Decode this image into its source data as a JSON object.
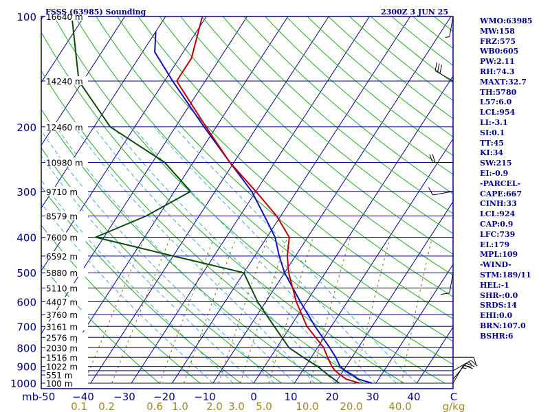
{
  "header": {
    "station": "FSSS (63985) Sounding",
    "time": "2300Z  3 JUN 25"
  },
  "colors": {
    "frame": "#00008b",
    "isobar": "#00008b",
    "isotherm": "#00008b",
    "dry_adiabat": "#22aa22",
    "moist_adiabat": "#44aadd",
    "mixing_ratio": "#8b6914",
    "temperature": "#c00000",
    "dewpoint": "#0a4a0a",
    "parcel": "#1010c0",
    "text_left": "#00008b",
    "text_bottom_temp": "#00008b",
    "text_bottom_mix": "#a08a2a"
  },
  "chart_data": {
    "type": "skew-t",
    "pressure_range": [
      1000,
      100
    ],
    "temperature_range": [
      -50,
      50
    ],
    "pressure_labels": [
      {
        "p": 100,
        "label": "100"
      },
      {
        "p": 200,
        "label": "200"
      },
      {
        "p": 300,
        "label": "300"
      },
      {
        "p": 400,
        "label": "400"
      },
      {
        "p": 500,
        "label": "500"
      },
      {
        "p": 600,
        "label": "600"
      },
      {
        "p": 700,
        "label": "700"
      },
      {
        "p": 800,
        "label": "800"
      },
      {
        "p": 900,
        "label": "900"
      },
      {
        "p": 1000,
        "label": "1000"
      }
    ],
    "isobars": [
      100,
      150,
      200,
      250,
      300,
      350,
      400,
      450,
      500,
      550,
      600,
      650,
      700,
      750,
      800,
      850,
      900,
      925,
      950,
      1000
    ],
    "heights": [
      {
        "p": 100,
        "label": "16640 m"
      },
      {
        "p": 150,
        "label": "14240 m"
      },
      {
        "p": 200,
        "label": "12460 m"
      },
      {
        "p": 250,
        "label": "10980 m"
      },
      {
        "p": 300,
        "label": "9710 m"
      },
      {
        "p": 350,
        "label": "8579 m"
      },
      {
        "p": 400,
        "label": "7600 m"
      },
      {
        "p": 450,
        "label": "6592 m"
      },
      {
        "p": 500,
        "label": "5880 m"
      },
      {
        "p": 550,
        "label": "5110 m"
      },
      {
        "p": 600,
        "label": "4407 m"
      },
      {
        "p": 650,
        "label": "3760 m"
      },
      {
        "p": 700,
        "label": "3161 m"
      },
      {
        "p": 750,
        "label": "2576 m"
      },
      {
        "p": 800,
        "label": "2030 m"
      },
      {
        "p": 850,
        "label": "1516 m"
      },
      {
        "p": 900,
        "label": "1022 m"
      },
      {
        "p": 950,
        "label": "551 m"
      },
      {
        "p": 1000,
        "label": "100 m"
      }
    ],
    "x_axis_unit_left": "mb",
    "temperature_labels": [
      "-50",
      "−40",
      "−30",
      "−20",
      "−10",
      "0",
      "10",
      "20",
      "30",
      "40",
      "C"
    ],
    "mixing_ratio_labels": [
      "0.1",
      "0.2",
      "0.6",
      "1.0",
      "2.0",
      "3.0",
      "5.0",
      "10.0",
      "20.0",
      "40.0",
      "g/kg"
    ],
    "temperature": [
      {
        "p": 1000,
        "t": 26
      },
      {
        "p": 975,
        "t": 22
      },
      {
        "p": 950,
        "t": 20
      },
      {
        "p": 925,
        "t": 18
      },
      {
        "p": 900,
        "t": 16.5
      },
      {
        "p": 850,
        "t": 14
      },
      {
        "p": 800,
        "t": 11.5
      },
      {
        "p": 700,
        "t": 4
      },
      {
        "p": 600,
        "t": -2.5
      },
      {
        "p": 500,
        "t": -9
      },
      {
        "p": 450,
        "t": -12
      },
      {
        "p": 400,
        "t": -14.5
      },
      {
        "p": 350,
        "t": -21
      },
      {
        "p": 300,
        "t": -30
      },
      {
        "p": 250,
        "t": -41
      },
      {
        "p": 200,
        "t": -52.5
      },
      {
        "p": 150,
        "t": -67
      },
      {
        "p": 130,
        "t": -67
      },
      {
        "p": 100,
        "t": -71
      }
    ],
    "dewpoint": [
      {
        "p": 1000,
        "t": 21
      },
      {
        "p": 950,
        "t": 17
      },
      {
        "p": 900,
        "t": 13
      },
      {
        "p": 850,
        "t": 8
      },
      {
        "p": 800,
        "t": 3
      },
      {
        "p": 700,
        "t": -4
      },
      {
        "p": 600,
        "t": -12
      },
      {
        "p": 500,
        "t": -20
      },
      {
        "p": 450,
        "t": -40
      },
      {
        "p": 400,
        "t": -62
      },
      {
        "p": 350,
        "t": -53
      },
      {
        "p": 300,
        "t": -46
      },
      {
        "p": 250,
        "t": -57
      },
      {
        "p": 200,
        "t": -76
      },
      {
        "p": 150,
        "t": -91
      },
      {
        "p": 100,
        "t": -103
      }
    ],
    "parcel": [
      {
        "p": 1000,
        "t": 29
      },
      {
        "p": 975,
        "t": 25
      },
      {
        "p": 950,
        "t": 23
      },
      {
        "p": 925,
        "t": 20.5
      },
      {
        "p": 900,
        "t": 18.5
      },
      {
        "p": 850,
        "t": 16
      },
      {
        "p": 800,
        "t": 13
      },
      {
        "p": 700,
        "t": 6
      },
      {
        "p": 600,
        "t": -1.5
      },
      {
        "p": 500,
        "t": -10
      },
      {
        "p": 450,
        "t": -14
      },
      {
        "p": 400,
        "t": -18
      },
      {
        "p": 350,
        "t": -24
      },
      {
        "p": 300,
        "t": -31
      },
      {
        "p": 250,
        "t": -41
      },
      {
        "p": 200,
        "t": -53
      },
      {
        "p": 150,
        "t": -68
      },
      {
        "p": 125,
        "t": -77
      },
      {
        "p": 110,
        "t": -80
      }
    ],
    "wind_barbs": [
      {
        "p": 100,
        "dir": 190,
        "spd": 5
      },
      {
        "p": 150,
        "dir": 300,
        "spd": 30
      },
      {
        "p": 250,
        "dir": 270,
        "spd": 20
      },
      {
        "p": 300,
        "dir": 260,
        "spd": 10
      },
      {
        "p": 500,
        "dir": 190,
        "spd": 10
      },
      {
        "p": 850,
        "dir": 90,
        "spd": 10
      },
      {
        "p": 925,
        "dir": 60,
        "spd": 15
      },
      {
        "p": 975,
        "dir": 40,
        "spd": 20
      },
      {
        "p": 1000,
        "dir": 30,
        "spd": 15
      }
    ]
  },
  "indices": [
    "WMO:63985",
    "MW:158",
    "FRZ:575",
    "WB0:605",
    "PW:2.11",
    "RH:74.3",
    "MAXT:32.7",
    "TH:5780",
    "L57:6.0",
    "LCL:954",
    "LI:-3.1",
    "SI:0.1",
    "TT:45",
    "KI:34",
    "SW:215",
    "EI:-0.9",
    "-PARCEL-",
    "CAPE:667",
    "CINH:33",
    "LCL:924",
    "CAP:0.9",
    "LFC:739",
    "EL:179",
    "MPL:109",
    "-WIND-",
    "STM:189/11",
    "HEL:-1",
    "SHR-:0.0",
    "SRDS:14",
    "EHI:0.0",
    "BRN:107.0",
    "BSHR:6"
  ]
}
